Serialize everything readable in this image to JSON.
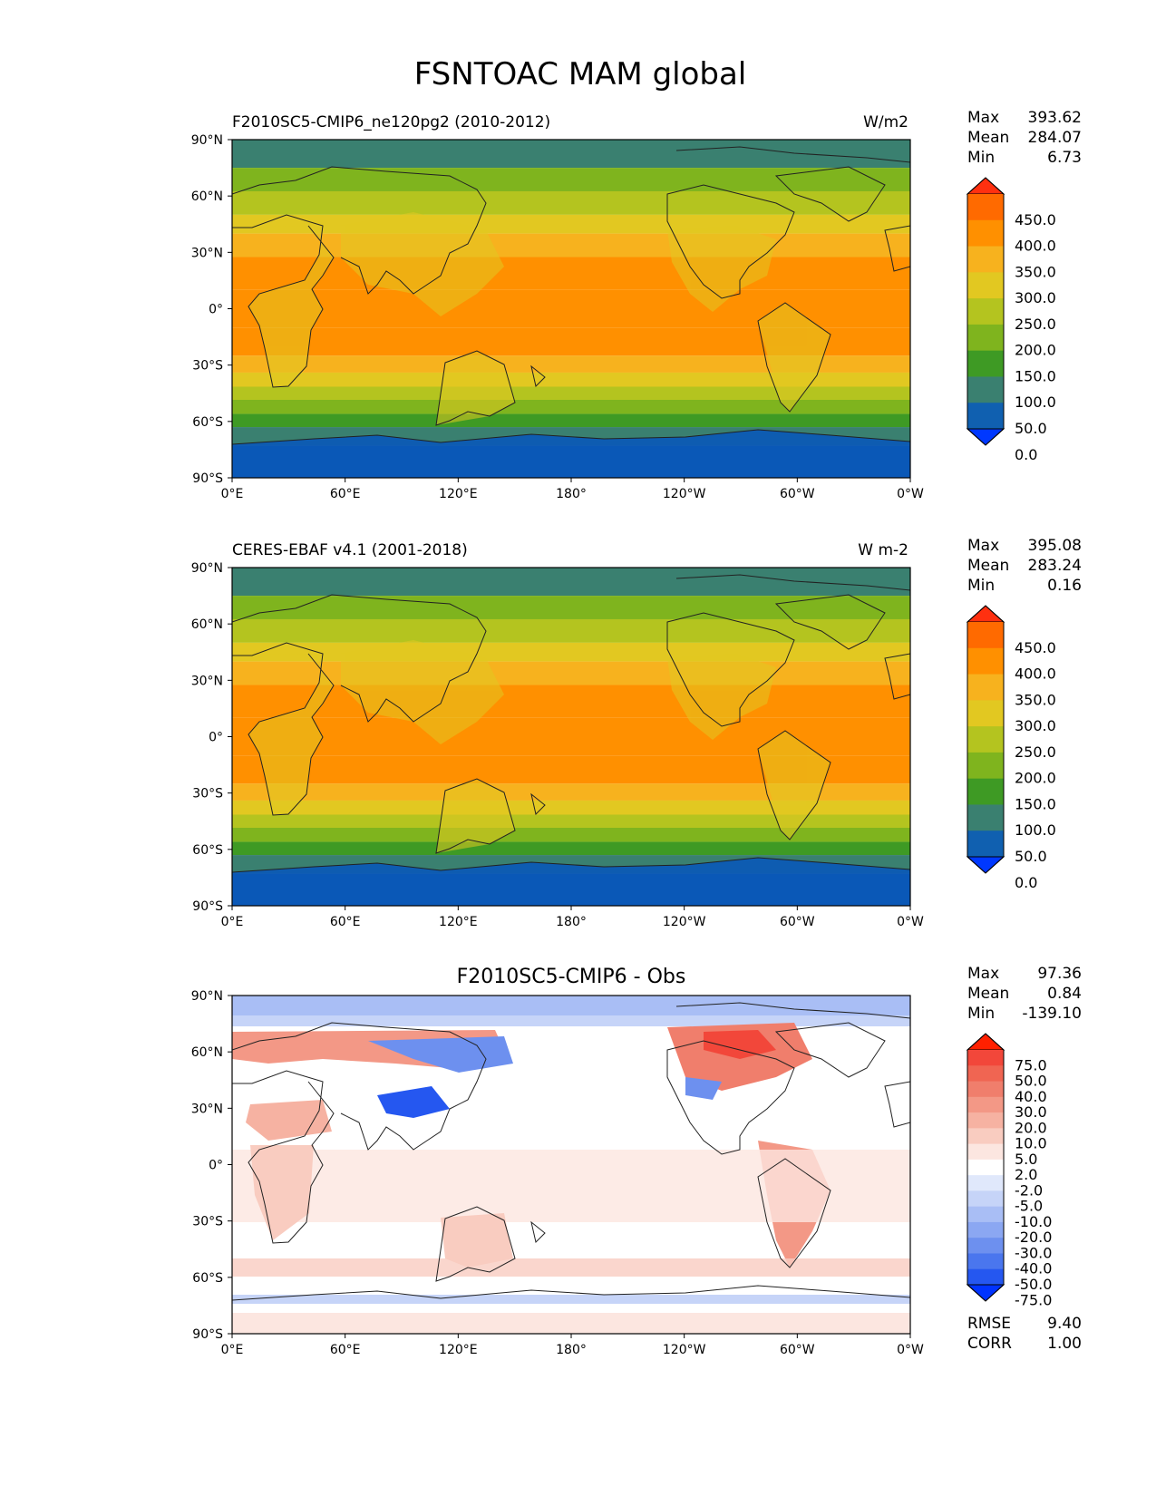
{
  "figure_title": "FSNTOAC MAM global",
  "axis_ticks": {
    "lat": [
      "90°N",
      "60°N",
      "30°N",
      "0°",
      "30°S",
      "60°S",
      "90°S"
    ],
    "lon": [
      "0°E",
      "60°E",
      "120°E",
      "180°",
      "120°W",
      "60°W",
      "0°W"
    ]
  },
  "panels": [
    {
      "left_title": "F2010SC5-CMIP6_ne120pg2 (2010-2012)",
      "right_title": "W/m2",
      "center_title": "",
      "stats": [
        {
          "label": "Max",
          "value": "393.62"
        },
        {
          "label": "Mean",
          "value": "284.07"
        },
        {
          "label": "Min",
          "value": "6.73"
        }
      ],
      "colorbar": {
        "levels": [
          "450.0",
          "400.0",
          "350.0",
          "300.0",
          "250.0",
          "200.0",
          "150.0",
          "100.0",
          "50.0",
          "0.0"
        ],
        "colors": [
          "#ff3010",
          "#ff6a00",
          "#ff9000",
          "#f7b21e",
          "#e2c821",
          "#b4c41f",
          "#7fb41e",
          "#3e9a24",
          "#3a8070",
          "#1060b0",
          "#0038ff"
        ]
      },
      "footer_stats": []
    },
    {
      "left_title": "CERES-EBAF v4.1 (2001-2018)",
      "right_title": "W m-2",
      "center_title": "",
      "stats": [
        {
          "label": "Max",
          "value": "395.08"
        },
        {
          "label": "Mean",
          "value": "283.24"
        },
        {
          "label": "Min",
          "value": "0.16"
        }
      ],
      "colorbar": {
        "levels": [
          "450.0",
          "400.0",
          "350.0",
          "300.0",
          "250.0",
          "200.0",
          "150.0",
          "100.0",
          "50.0",
          "0.0"
        ],
        "colors": [
          "#ff3010",
          "#ff6a00",
          "#ff9000",
          "#f7b21e",
          "#e2c821",
          "#b4c41f",
          "#7fb41e",
          "#3e9a24",
          "#3a8070",
          "#1060b0",
          "#0038ff"
        ]
      },
      "footer_stats": []
    },
    {
      "left_title": "",
      "right_title": "",
      "center_title": "F2010SC5-CMIP6 - Obs",
      "stats": [
        {
          "label": "Max",
          "value": "97.36"
        },
        {
          "label": "Mean",
          "value": "0.84"
        },
        {
          "label": "Min",
          "value": "-139.10"
        }
      ],
      "colorbar": {
        "levels": [
          "75.0",
          "50.0",
          "40.0",
          "30.0",
          "20.0",
          "10.0",
          "5.0",
          "2.0",
          "-2.0",
          "-5.0",
          "-10.0",
          "-20.0",
          "-30.0",
          "-40.0",
          "-50.0",
          "-75.0"
        ],
        "colors": [
          "#ff2000",
          "#f2473a",
          "#f06552",
          "#f07e6c",
          "#f39886",
          "#f6b2a2",
          "#f9ccc0",
          "#fce6e0",
          "#ffffff",
          "#e0e8fb",
          "#c6d4f8",
          "#a9bef5",
          "#8ba7f2",
          "#6d90ef",
          "#4a76ee",
          "#2557f0",
          "#0033ff"
        ]
      },
      "footer_stats": [
        {
          "label": "RMSE",
          "value": "9.40"
        },
        {
          "label": "CORR",
          "value": "1.00"
        }
      ]
    }
  ],
  "chart_data": [
    {
      "type": "heatmap",
      "map_projection": "PlateCarree, centered at 180°",
      "left_title": "F2010SC5-CMIP6_ne120pg2 (2010-2012)",
      "units": "W/m2",
      "xlim": [
        0,
        360
      ],
      "ylim": [
        -90,
        90
      ],
      "levels": [
        0,
        50,
        100,
        150,
        200,
        250,
        300,
        350,
        400,
        450
      ],
      "zonal_mean_band_values": [
        {
          "lat": 80,
          "value": 75
        },
        {
          "lat": 70,
          "value": 175
        },
        {
          "lat": 55,
          "value": 225
        },
        {
          "lat": 45,
          "value": 275
        },
        {
          "lat": 35,
          "value": 325
        },
        {
          "lat": 20,
          "value": 375
        },
        {
          "lat": 0,
          "value": 375
        },
        {
          "lat": -20,
          "value": 375
        },
        {
          "lat": -30,
          "value": 325
        },
        {
          "lat": -38,
          "value": 275
        },
        {
          "lat": -45,
          "value": 225
        },
        {
          "lat": -52,
          "value": 175
        },
        {
          "lat": -60,
          "value": 125
        },
        {
          "lat": -66,
          "value": 75
        },
        {
          "lat": -80,
          "value": 25
        }
      ],
      "stats": {
        "max": 393.62,
        "mean": 284.07,
        "min": 6.73
      }
    },
    {
      "type": "heatmap",
      "map_projection": "PlateCarree, centered at 180°",
      "left_title": "CERES-EBAF v4.1 (2001-2018)",
      "units": "W m-2",
      "xlim": [
        0,
        360
      ],
      "ylim": [
        -90,
        90
      ],
      "levels": [
        0,
        50,
        100,
        150,
        200,
        250,
        300,
        350,
        400,
        450
      ],
      "zonal_mean_band_values": [
        {
          "lat": 80,
          "value": 75
        },
        {
          "lat": 70,
          "value": 175
        },
        {
          "lat": 55,
          "value": 225
        },
        {
          "lat": 45,
          "value": 275
        },
        {
          "lat": 35,
          "value": 325
        },
        {
          "lat": 20,
          "value": 375
        },
        {
          "lat": 0,
          "value": 375
        },
        {
          "lat": -20,
          "value": 375
        },
        {
          "lat": -30,
          "value": 325
        },
        {
          "lat": -38,
          "value": 275
        },
        {
          "lat": -45,
          "value": 225
        },
        {
          "lat": -52,
          "value": 175
        },
        {
          "lat": -60,
          "value": 125
        },
        {
          "lat": -66,
          "value": 75
        },
        {
          "lat": -80,
          "value": 25
        }
      ],
      "stats": {
        "max": 395.08,
        "mean": 283.24,
        "min": 0.16
      }
    },
    {
      "type": "heatmap",
      "map_projection": "PlateCarree, centered at 180°",
      "center_title": "F2010SC5-CMIP6 - Obs",
      "xlim": [
        0,
        360
      ],
      "ylim": [
        -90,
        90
      ],
      "levels": [
        -75,
        -50,
        -40,
        -30,
        -20,
        -10,
        -5,
        -2,
        2,
        5,
        10,
        20,
        30,
        40,
        50,
        75
      ],
      "stats": {
        "max": 97.36,
        "mean": 0.84,
        "min": -139.1
      },
      "rmse": 9.4,
      "corr": 1.0
    }
  ]
}
